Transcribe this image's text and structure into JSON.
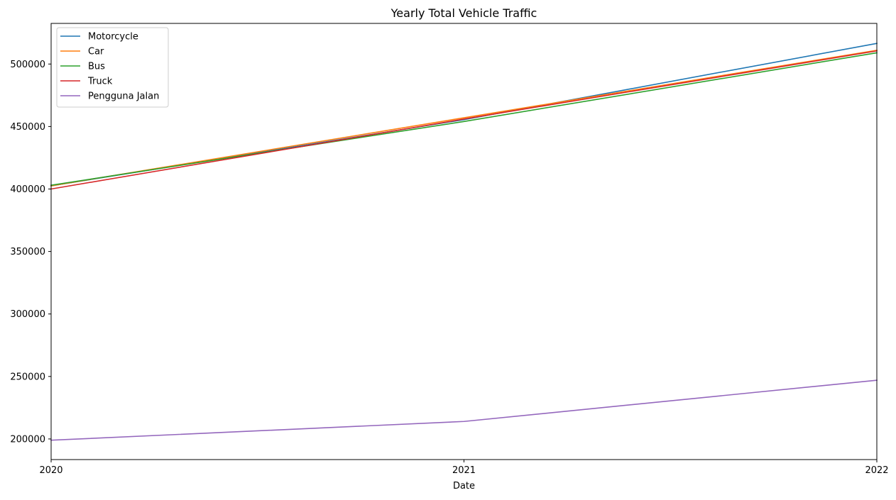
{
  "chart_data": {
    "type": "line",
    "title": "Yearly Total Vehicle Traffic",
    "xlabel": "Date",
    "ylabel": "",
    "x": [
      "2020",
      "2021",
      "2022"
    ],
    "x_ticks": [
      "2020",
      "2021",
      "2022"
    ],
    "y_ticks": [
      200000,
      250000,
      300000,
      350000,
      400000,
      450000,
      500000
    ],
    "y_tick_labels": [
      "200000",
      "250000",
      "300000",
      "350000",
      "400000",
      "450000",
      "500000"
    ],
    "ylim": [
      183500,
      532500
    ],
    "grid": false,
    "legend_position": "top-left",
    "series": [
      {
        "name": "Motorcycle",
        "color": "#1f77b4",
        "values": [
          402500,
          455500,
          516500
        ]
      },
      {
        "name": "Car",
        "color": "#ff7f0e",
        "values": [
          402500,
          457000,
          511000
        ]
      },
      {
        "name": "Bus",
        "color": "#2ca02c",
        "values": [
          403000,
          454000,
          509000
        ]
      },
      {
        "name": "Truck",
        "color": "#d62728",
        "values": [
          400000,
          456000,
          510500
        ]
      },
      {
        "name": "Pengguna Jalan",
        "color": "#9467bd",
        "values": [
          199000,
          214000,
          247000
        ]
      }
    ]
  }
}
